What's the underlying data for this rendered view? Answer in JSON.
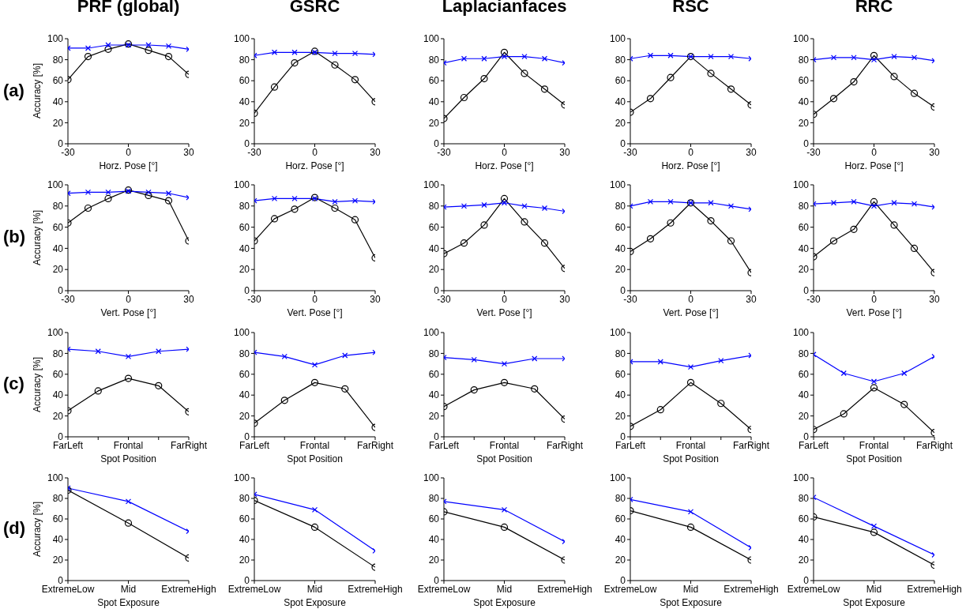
{
  "chart_data": [
    {
      "type": "line",
      "title": "PRF (global)",
      "annotations": [
        "(a)"
      ],
      "ylabel": "Accuracy [%]",
      "xlabel": "Horz. Pose [°]",
      "x": [
        -30,
        -20,
        -10,
        0,
        10,
        20,
        30
      ],
      "xlim": [
        -30,
        30
      ],
      "xticks": [
        -30,
        0,
        30
      ],
      "ylim": [
        0,
        100
      ],
      "yticks": [
        0,
        20,
        40,
        60,
        80,
        100
      ],
      "series": [
        {
          "color": "#0000ff",
          "marker": "cross",
          "values": [
            91,
            91,
            94,
            94,
            94,
            93,
            90
          ]
        },
        {
          "color": "#000000",
          "marker": "circle",
          "values": [
            61,
            83,
            90,
            95,
            89,
            83,
            66
          ]
        }
      ]
    },
    {
      "type": "line",
      "title": "GSRC",
      "xlabel": "Horz. Pose [°]",
      "x": [
        -30,
        -20,
        -10,
        0,
        10,
        20,
        30
      ],
      "xlim": [
        -30,
        30
      ],
      "xticks": [
        -30,
        0,
        30
      ],
      "ylim": [
        0,
        100
      ],
      "yticks": [
        0,
        20,
        40,
        60,
        80,
        100
      ],
      "series": [
        {
          "color": "#0000ff",
          "marker": "cross",
          "values": [
            84,
            87,
            87,
            87,
            86,
            86,
            85
          ]
        },
        {
          "color": "#000000",
          "marker": "circle",
          "values": [
            29,
            54,
            77,
            88,
            75,
            61,
            40
          ]
        }
      ]
    },
    {
      "type": "line",
      "title": "Laplacianfaces",
      "xlabel": "Horz. Pose [°]",
      "x": [
        -30,
        -20,
        -10,
        0,
        10,
        20,
        30
      ],
      "xlim": [
        -30,
        30
      ],
      "xticks": [
        -30,
        0,
        30
      ],
      "ylim": [
        0,
        100
      ],
      "yticks": [
        0,
        20,
        40,
        60,
        80,
        100
      ],
      "series": [
        {
          "color": "#0000ff",
          "marker": "cross",
          "values": [
            77,
            81,
            81,
            83,
            83,
            81,
            77
          ]
        },
        {
          "color": "#000000",
          "marker": "circle",
          "values": [
            24,
            44,
            62,
            87,
            67,
            52,
            37
          ]
        }
      ]
    },
    {
      "type": "line",
      "title": "RSC",
      "xlabel": "Horz. Pose [°]",
      "x": [
        -30,
        -20,
        -10,
        0,
        10,
        20,
        30
      ],
      "xlim": [
        -30,
        30
      ],
      "xticks": [
        -30,
        0,
        30
      ],
      "ylim": [
        0,
        100
      ],
      "yticks": [
        0,
        20,
        40,
        60,
        80,
        100
      ],
      "series": [
        {
          "color": "#0000ff",
          "marker": "cross",
          "values": [
            81,
            84,
            84,
            83,
            83,
            83,
            81
          ]
        },
        {
          "color": "#000000",
          "marker": "circle",
          "values": [
            30,
            43,
            63,
            83,
            67,
            52,
            37
          ]
        }
      ]
    },
    {
      "type": "line",
      "title": "RRC",
      "xlabel": "Horz. Pose [°]",
      "x": [
        -30,
        -20,
        -10,
        0,
        10,
        20,
        30
      ],
      "xlim": [
        -30,
        30
      ],
      "xticks": [
        -30,
        0,
        30
      ],
      "ylim": [
        0,
        100
      ],
      "yticks": [
        0,
        20,
        40,
        60,
        80,
        100
      ],
      "series": [
        {
          "color": "#0000ff",
          "marker": "cross",
          "values": [
            80,
            82,
            82,
            80,
            83,
            82,
            79
          ]
        },
        {
          "color": "#000000",
          "marker": "circle",
          "values": [
            28,
            43,
            59,
            84,
            64,
            48,
            35
          ]
        }
      ]
    },
    {
      "type": "line",
      "annotations": [
        "(b)"
      ],
      "ylabel": "Accuracy [%]",
      "xlabel": "Vert. Pose [°]",
      "x": [
        -30,
        -20,
        -10,
        0,
        10,
        20,
        30
      ],
      "xlim": [
        -30,
        30
      ],
      "xticks": [
        -30,
        0,
        30
      ],
      "ylim": [
        0,
        100
      ],
      "yticks": [
        0,
        20,
        40,
        60,
        80,
        100
      ],
      "series": [
        {
          "color": "#0000ff",
          "marker": "cross",
          "values": [
            92,
            93,
            93,
            94,
            93,
            92,
            88
          ]
        },
        {
          "color": "#000000",
          "marker": "circle",
          "values": [
            64,
            78,
            87,
            95,
            90,
            85,
            47
          ]
        }
      ]
    },
    {
      "type": "line",
      "xlabel": "Vert. Pose [°]",
      "x": [
        -30,
        -20,
        -10,
        0,
        10,
        20,
        30
      ],
      "xlim": [
        -30,
        30
      ],
      "xticks": [
        -30,
        0,
        30
      ],
      "ylim": [
        0,
        100
      ],
      "yticks": [
        0,
        20,
        40,
        60,
        80,
        100
      ],
      "series": [
        {
          "color": "#0000ff",
          "marker": "cross",
          "values": [
            85,
            87,
            87,
            87,
            84,
            85,
            84
          ]
        },
        {
          "color": "#000000",
          "marker": "circle",
          "values": [
            47,
            68,
            77,
            88,
            78,
            67,
            31
          ]
        }
      ]
    },
    {
      "type": "line",
      "xlabel": "Vert. Pose [°]",
      "x": [
        -30,
        -20,
        -10,
        0,
        10,
        20,
        30
      ],
      "xlim": [
        -30,
        30
      ],
      "xticks": [
        -30,
        0,
        30
      ],
      "ylim": [
        0,
        100
      ],
      "yticks": [
        0,
        20,
        40,
        60,
        80,
        100
      ],
      "series": [
        {
          "color": "#0000ff",
          "marker": "cross",
          "values": [
            79,
            80,
            81,
            83,
            80,
            78,
            75
          ]
        },
        {
          "color": "#000000",
          "marker": "circle",
          "values": [
            35,
            45,
            62,
            87,
            65,
            45,
            21
          ]
        }
      ]
    },
    {
      "type": "line",
      "xlabel": "Vert. Pose [°]",
      "x": [
        -30,
        -20,
        -10,
        0,
        10,
        20,
        30
      ],
      "xlim": [
        -30,
        30
      ],
      "xticks": [
        -30,
        0,
        30
      ],
      "ylim": [
        0,
        100
      ],
      "yticks": [
        0,
        20,
        40,
        60,
        80,
        100
      ],
      "series": [
        {
          "color": "#0000ff",
          "marker": "cross",
          "values": [
            80,
            84,
            84,
            83,
            83,
            80,
            77
          ]
        },
        {
          "color": "#000000",
          "marker": "circle",
          "values": [
            37,
            49,
            64,
            83,
            66,
            47,
            17
          ]
        }
      ]
    },
    {
      "type": "line",
      "xlabel": "Vert. Pose [°]",
      "x": [
        -30,
        -20,
        -10,
        0,
        10,
        20,
        30
      ],
      "xlim": [
        -30,
        30
      ],
      "xticks": [
        -30,
        0,
        30
      ],
      "ylim": [
        0,
        100
      ],
      "yticks": [
        0,
        20,
        40,
        60,
        80,
        100
      ],
      "series": [
        {
          "color": "#0000ff",
          "marker": "cross",
          "values": [
            82,
            83,
            84,
            80,
            83,
            82,
            79
          ]
        },
        {
          "color": "#000000",
          "marker": "circle",
          "values": [
            32,
            47,
            58,
            84,
            62,
            40,
            17
          ]
        }
      ]
    },
    {
      "type": "line",
      "annotations": [
        "(c)"
      ],
      "ylabel": "Accuracy [%]",
      "xlabel": "Spot Position",
      "categories": [
        "FarLeft",
        null,
        "Frontal",
        null,
        "FarRight"
      ],
      "ylim": [
        0,
        100
      ],
      "yticks": [
        0,
        20,
        40,
        60,
        80,
        100
      ],
      "series": [
        {
          "color": "#0000ff",
          "marker": "cross",
          "values": [
            84,
            82,
            77,
            82,
            84
          ]
        },
        {
          "color": "#000000",
          "marker": "circle",
          "values": [
            25,
            44,
            56,
            49,
            24
          ]
        }
      ]
    },
    {
      "type": "line",
      "xlabel": "Spot Position",
      "categories": [
        "FarLeft",
        null,
        "Frontal",
        null,
        "FarRight"
      ],
      "ylim": [
        0,
        100
      ],
      "yticks": [
        0,
        20,
        40,
        60,
        80,
        100
      ],
      "series": [
        {
          "color": "#0000ff",
          "marker": "cross",
          "values": [
            81,
            77,
            69,
            78,
            81
          ]
        },
        {
          "color": "#000000",
          "marker": "circle",
          "values": [
            13,
            35,
            52,
            46,
            9
          ]
        }
      ]
    },
    {
      "type": "line",
      "xlabel": "Spot Position",
      "categories": [
        "FarLeft",
        null,
        "Frontal",
        null,
        "FarRight"
      ],
      "ylim": [
        0,
        100
      ],
      "yticks": [
        0,
        20,
        40,
        60,
        80,
        100
      ],
      "series": [
        {
          "color": "#0000ff",
          "marker": "cross",
          "values": [
            76,
            74,
            70,
            75,
            75
          ]
        },
        {
          "color": "#000000",
          "marker": "circle",
          "values": [
            29,
            45,
            52,
            46,
            17
          ]
        }
      ]
    },
    {
      "type": "line",
      "xlabel": "Spot Position",
      "categories": [
        "FarLeft",
        null,
        "Frontal",
        null,
        "FarRight"
      ],
      "ylim": [
        0,
        100
      ],
      "yticks": [
        0,
        20,
        40,
        60,
        80,
        100
      ],
      "series": [
        {
          "color": "#0000ff",
          "marker": "cross",
          "values": [
            72,
            72,
            67,
            73,
            78
          ]
        },
        {
          "color": "#000000",
          "marker": "circle",
          "values": [
            10,
            26,
            52,
            32,
            7
          ]
        }
      ]
    },
    {
      "type": "line",
      "xlabel": "Spot Position",
      "categories": [
        "FarLeft",
        null,
        "Frontal",
        null,
        "FarRight"
      ],
      "ylim": [
        0,
        100
      ],
      "yticks": [
        0,
        20,
        40,
        60,
        80,
        100
      ],
      "series": [
        {
          "color": "#0000ff",
          "marker": "cross",
          "values": [
            79,
            61,
            53,
            61,
            77
          ]
        },
        {
          "color": "#000000",
          "marker": "circle",
          "values": [
            7,
            22,
            47,
            31,
            4
          ]
        }
      ]
    },
    {
      "type": "line",
      "annotations": [
        "(d)"
      ],
      "ylabel": "Accuracy [%]",
      "xlabel": "Spot Exposure",
      "categories": [
        "ExtremeLow",
        "Mid",
        "ExtremeHigh"
      ],
      "ylim": [
        0,
        100
      ],
      "yticks": [
        0,
        20,
        40,
        60,
        80,
        100
      ],
      "series": [
        {
          "color": "#0000ff",
          "marker": "cross",
          "values": [
            90,
            77,
            48
          ]
        },
        {
          "color": "#000000",
          "marker": "circle",
          "values": [
            88,
            56,
            22
          ]
        }
      ]
    },
    {
      "type": "line",
      "xlabel": "Spot Exposure",
      "categories": [
        "ExtremeLow",
        "Mid",
        "ExtremeHigh"
      ],
      "ylim": [
        0,
        100
      ],
      "yticks": [
        0,
        20,
        40,
        60,
        80,
        100
      ],
      "series": [
        {
          "color": "#0000ff",
          "marker": "cross",
          "values": [
            84,
            69,
            29
          ]
        },
        {
          "color": "#000000",
          "marker": "circle",
          "values": [
            78,
            52,
            13
          ]
        }
      ]
    },
    {
      "type": "line",
      "xlabel": "Spot Exposure",
      "categories": [
        "ExtremeLow",
        "Mid",
        "ExtremeHigh"
      ],
      "ylim": [
        0,
        100
      ],
      "yticks": [
        0,
        20,
        40,
        60,
        80,
        100
      ],
      "series": [
        {
          "color": "#0000ff",
          "marker": "cross",
          "values": [
            77,
            69,
            38
          ]
        },
        {
          "color": "#000000",
          "marker": "circle",
          "values": [
            67,
            52,
            20
          ]
        }
      ]
    },
    {
      "type": "line",
      "xlabel": "Spot Exposure",
      "categories": [
        "ExtremeLow",
        "Mid",
        "ExtremeHigh"
      ],
      "ylim": [
        0,
        100
      ],
      "yticks": [
        0,
        20,
        40,
        60,
        80,
        100
      ],
      "series": [
        {
          "color": "#0000ff",
          "marker": "cross",
          "values": [
            79,
            67,
            32
          ]
        },
        {
          "color": "#000000",
          "marker": "circle",
          "values": [
            68,
            52,
            20
          ]
        }
      ]
    },
    {
      "type": "line",
      "xlabel": "Spot Exposure",
      "categories": [
        "ExtremeLow",
        "Mid",
        "ExtremeHigh"
      ],
      "ylim": [
        0,
        100
      ],
      "yticks": [
        0,
        20,
        40,
        60,
        80,
        100
      ],
      "series": [
        {
          "color": "#0000ff",
          "marker": "cross",
          "values": [
            81,
            53,
            25
          ]
        },
        {
          "color": "#000000",
          "marker": "circle",
          "values": [
            62,
            47,
            15
          ]
        }
      ]
    }
  ]
}
